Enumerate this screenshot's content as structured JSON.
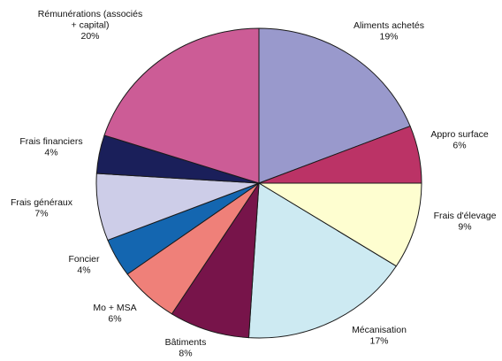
{
  "chart_data": {
    "type": "pie",
    "start_angle_deg": 0,
    "direction": "clockwise",
    "legend": "none",
    "slices": [
      {
        "label": "Aliments achetés",
        "value": 19,
        "value_label": "19%",
        "color": "#9999cc"
      },
      {
        "label": "Appro surface",
        "value": 6,
        "value_label": "6%",
        "color": "#bb3366"
      },
      {
        "label": "Frais d'élevage",
        "value": 9,
        "value_label": "9%",
        "color": "#fefed0"
      },
      {
        "label": "Mécanisation",
        "value": 17,
        "value_label": "17%",
        "color": "#cdeaf2"
      },
      {
        "label": "Bâtiments",
        "value": 8,
        "value_label": "8%",
        "color": "#77144a"
      },
      {
        "label": "Mo + MSA",
        "value": 6,
        "value_label": "6%",
        "color": "#ef8079"
      },
      {
        "label": "Foncier",
        "value": 4,
        "value_label": "4%",
        "color": "#1466b0"
      },
      {
        "label": "Frais généraux",
        "value": 7,
        "value_label": "7%",
        "color": "#cdcde8"
      },
      {
        "label": "Frais financiers",
        "value": 4,
        "value_label": "4%",
        "color": "#1a1f5a"
      },
      {
        "label": "Rémunérations (associés + capital)",
        "label_lines": [
          "Rémunérations (associés",
          "+ capital)"
        ],
        "value": 20,
        "value_label": "20%",
        "color": "#cc5c96"
      }
    ]
  }
}
